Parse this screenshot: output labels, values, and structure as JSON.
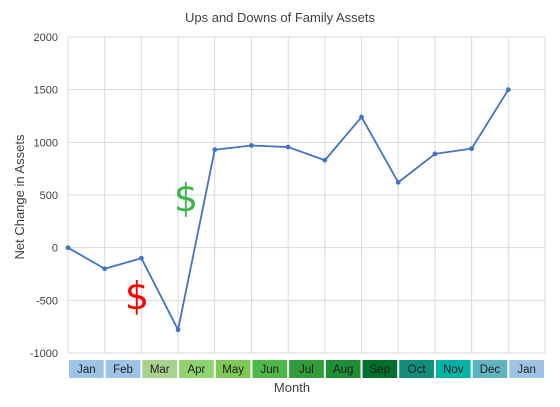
{
  "chart_data": {
    "type": "line",
    "title": "Ups and Downs of Family Assets",
    "xlabel": "Month",
    "ylabel": "Net Change in Assets",
    "ylim": [
      -1000,
      2000
    ],
    "yticks": [
      2000,
      1500,
      1000,
      500,
      0,
      -500,
      -1000
    ],
    "grid": true,
    "categories": [
      "Jan",
      "Feb",
      "Mar",
      "Apr",
      "May",
      "Jun",
      "Jul",
      "Aug",
      "Sep",
      "Oct",
      "Nov",
      "Dec",
      "Jan"
    ],
    "series": [
      {
        "values": [
          0,
          -200,
          -100,
          -780,
          930,
          970,
          955,
          830,
          1240,
          620,
          890,
          940,
          1500
        ],
        "color": "#4472c4"
      }
    ],
    "month_colors": [
      "#9dc3e6",
      "#9dc3e6",
      "#a9d18e",
      "#8fd46e",
      "#7dc856",
      "#4db848",
      "#2f9e3a",
      "#1e8f34",
      "#00702a",
      "#138e7a",
      "#00b3a6",
      "#5fb4c0",
      "#9dc3e6"
    ],
    "annotations": [
      {
        "text": "$",
        "color": "#ff0000"
      },
      {
        "text": "$",
        "color": "#3cb44b"
      }
    ]
  }
}
